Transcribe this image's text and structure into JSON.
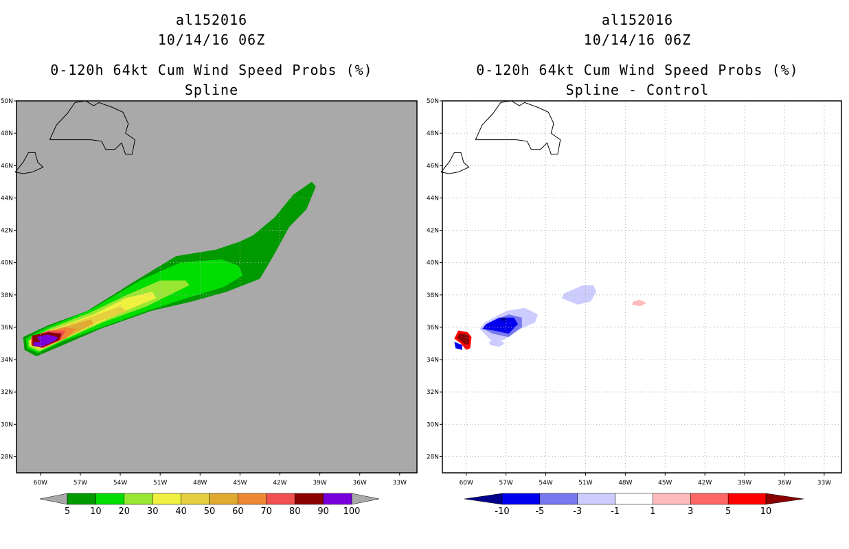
{
  "chart_data": [
    {
      "type": "heatmap",
      "title_lines": [
        "al152016",
        "10/14/16 06Z"
      ],
      "subtitle_lines": [
        "0-120h 64kt Cum Wind Speed Probs (%)",
        "Spline"
      ],
      "lon_ticks": [
        "60W",
        "57W",
        "54W",
        "51W",
        "48W",
        "45W",
        "42W",
        "39W",
        "36W",
        "33W"
      ],
      "lat_ticks": [
        "50N",
        "48N",
        "46N",
        "44N",
        "42N",
        "40N",
        "38N",
        "36N",
        "34N",
        "32N",
        "30N",
        "28N"
      ],
      "xlim": [
        -61.8,
        -31.7
      ],
      "ylim": [
        27.0,
        50.0
      ],
      "background": "#a9a9a9",
      "colorbar": {
        "labels": [
          "5",
          "10",
          "20",
          "30",
          "40",
          "50",
          "60",
          "70",
          "80",
          "90",
          "100"
        ],
        "colors": [
          "#009900",
          "#00dd00",
          "#99e633",
          "#f0f040",
          "#e6d040",
          "#e0aa30",
          "#ee8833",
          "#f05050",
          "#8b0000",
          "#7700dd"
        ]
      },
      "levels": [
        {
          "value": 5,
          "color": "#009900",
          "polygon": [
            [
              -61.2,
              34.6
            ],
            [
              -60.3,
              34.2
            ],
            [
              -58.6,
              34.8
            ],
            [
              -55.5,
              35.9
            ],
            [
              -51.7,
              37.0
            ],
            [
              -48.6,
              37.6
            ],
            [
              -46.0,
              38.2
            ],
            [
              -43.5,
              39.0
            ],
            [
              -42.5,
              40.4
            ],
            [
              -41.3,
              42.2
            ],
            [
              -40.0,
              43.3
            ],
            [
              -39.3,
              44.7
            ],
            [
              -39.6,
              45.0
            ],
            [
              -41.0,
              44.2
            ],
            [
              -42.4,
              42.8
            ],
            [
              -44.0,
              41.7
            ],
            [
              -45.0,
              41.3
            ],
            [
              -46.8,
              40.8
            ],
            [
              -49.8,
              40.4
            ],
            [
              -53.0,
              38.8
            ],
            [
              -56.5,
              37.0
            ],
            [
              -59.5,
              36.1
            ],
            [
              -61.3,
              35.4
            ]
          ]
        },
        {
          "value": 10,
          "color": "#00dd00",
          "polygon": [
            [
              -61.0,
              34.7
            ],
            [
              -60.2,
              34.4
            ],
            [
              -58.4,
              35.1
            ],
            [
              -55.4,
              36.0
            ],
            [
              -52.0,
              37.0
            ],
            [
              -49.0,
              37.8
            ],
            [
              -46.2,
              38.5
            ],
            [
              -44.8,
              39.2
            ],
            [
              -45.1,
              39.8
            ],
            [
              -46.4,
              40.2
            ],
            [
              -49.5,
              40.0
            ],
            [
              -52.5,
              38.9
            ],
            [
              -56.2,
              37.1
            ],
            [
              -59.5,
              36.0
            ],
            [
              -61.1,
              35.3
            ]
          ]
        },
        {
          "value": 20,
          "color": "#99e633",
          "polygon": [
            [
              -60.9,
              34.8
            ],
            [
              -60.1,
              34.5
            ],
            [
              -58.3,
              35.2
            ],
            [
              -55.3,
              36.3
            ],
            [
              -52.0,
              37.3
            ],
            [
              -49.8,
              38.2
            ],
            [
              -48.8,
              38.6
            ],
            [
              -49.1,
              38.9
            ],
            [
              -51.0,
              38.9
            ],
            [
              -53.5,
              38.0
            ],
            [
              -56.3,
              36.9
            ],
            [
              -59.4,
              35.9
            ],
            [
              -60.9,
              35.2
            ]
          ]
        },
        {
          "value": 30,
          "color": "#f0f040",
          "polygon": [
            [
              -60.8,
              34.9
            ],
            [
              -60.0,
              34.6
            ],
            [
              -58.2,
              35.3
            ],
            [
              -55.3,
              36.4
            ],
            [
              -52.5,
              37.4
            ],
            [
              -51.3,
              37.8
            ],
            [
              -51.6,
              38.2
            ],
            [
              -53.6,
              37.8
            ],
            [
              -56.0,
              36.8
            ],
            [
              -59.3,
              35.8
            ],
            [
              -60.8,
              35.2
            ]
          ]
        },
        {
          "value": 40,
          "color": "#e6d040",
          "polygon": [
            [
              -60.7,
              34.95
            ],
            [
              -59.9,
              34.7
            ],
            [
              -58.1,
              35.4
            ],
            [
              -55.5,
              36.4
            ],
            [
              -53.5,
              37.0
            ],
            [
              -54.0,
              37.3
            ],
            [
              -56.0,
              36.7
            ],
            [
              -59.2,
              35.8
            ],
            [
              -60.7,
              35.2
            ]
          ]
        },
        {
          "value": 50,
          "color": "#e0aa30",
          "polygon": [
            [
              -60.6,
              35.0
            ],
            [
              -59.8,
              34.8
            ],
            [
              -58.0,
              35.4
            ],
            [
              -56.0,
              36.2
            ],
            [
              -56.2,
              36.5
            ],
            [
              -58.2,
              36.0
            ],
            [
              -59.6,
              35.7
            ],
            [
              -60.6,
              35.3
            ]
          ]
        },
        {
          "value": 60,
          "color": "#ee8833",
          "polygon": [
            [
              -60.6,
              34.95
            ],
            [
              -59.7,
              34.8
            ],
            [
              -58.1,
              35.3
            ],
            [
              -57.3,
              35.9
            ],
            [
              -58.2,
              36.0
            ],
            [
              -59.5,
              35.7
            ],
            [
              -60.6,
              35.3
            ]
          ]
        },
        {
          "value": 70,
          "color": "#f05050",
          "polygon": [
            [
              -60.7,
              34.9
            ],
            [
              -59.8,
              34.7
            ],
            [
              -58.5,
              35.2
            ],
            [
              -58.1,
              35.8
            ],
            [
              -59.4,
              35.8
            ],
            [
              -60.7,
              35.4
            ]
          ]
        },
        {
          "value": 80,
          "color": "#8b0000",
          "polygon": [
            [
              -60.6,
              34.85
            ],
            [
              -59.9,
              34.75
            ],
            [
              -58.6,
              35.2
            ],
            [
              -58.4,
              35.6
            ],
            [
              -59.4,
              35.7
            ],
            [
              -60.6,
              35.5
            ]
          ]
        },
        {
          "value": 90,
          "color": "#7700dd",
          "polygon": [
            [
              -60.5,
              34.85
            ],
            [
              -59.9,
              34.8
            ],
            [
              -58.8,
              35.2
            ],
            [
              -58.7,
              35.4
            ],
            [
              -59.5,
              35.55
            ],
            [
              -60.3,
              35.4
            ],
            [
              -60.0,
              35.1
            ],
            [
              -60.5,
              35.1
            ]
          ]
        }
      ]
    },
    {
      "type": "heatmap",
      "title_lines": [
        "al152016",
        "10/14/16 06Z"
      ],
      "subtitle_lines": [
        "0-120h 64kt Cum Wind Speed Probs (%)",
        "Spline - Control"
      ],
      "lon_ticks": [
        "60W",
        "57W",
        "54W",
        "51W",
        "48W",
        "45W",
        "42W",
        "39W",
        "36W",
        "33W"
      ],
      "lat_ticks": [
        "50N",
        "48N",
        "46N",
        "44N",
        "42N",
        "40N",
        "38N",
        "36N",
        "34N",
        "32N",
        "30N",
        "28N"
      ],
      "xlim": [
        -61.8,
        -31.7
      ],
      "ylim": [
        27.0,
        50.0
      ],
      "background": "#ffffff",
      "colorbar": {
        "labels": [
          "-10",
          "-5",
          "-3",
          "-1",
          "1",
          "3",
          "5",
          "10"
        ],
        "colors": [
          "#00008b",
          "#0000ee",
          "#7777ee",
          "#ccccff",
          "#ffffff",
          "#ffbbbb",
          "#ff6666",
          "#ff0000",
          "#880000"
        ]
      },
      "levels": [
        {
          "value": -1,
          "color": "#ccccff",
          "polygon": [
            [
              -59.0,
              35.9
            ],
            [
              -58.0,
              35.1
            ],
            [
              -57.2,
              35.2
            ],
            [
              -56.2,
              35.8
            ],
            [
              -54.8,
              36.3
            ],
            [
              -54.6,
              36.8
            ],
            [
              -55.6,
              37.2
            ],
            [
              -57.0,
              37.0
            ],
            [
              -58.6,
              36.3
            ]
          ]
        },
        {
          "value": -1,
          "color": "#ccccff",
          "polygon": [
            [
              -58.2,
              34.9
            ],
            [
              -57.5,
              34.8
            ],
            [
              -57.1,
              35.0
            ],
            [
              -57.6,
              35.3
            ],
            [
              -58.3,
              35.1
            ]
          ]
        },
        {
          "value": -1,
          "color": "#ccccff",
          "polygon": [
            [
              -52.8,
              37.8
            ],
            [
              -51.6,
              37.4
            ],
            [
              -50.6,
              37.6
            ],
            [
              -50.2,
              38.2
            ],
            [
              -50.4,
              38.6
            ],
            [
              -51.2,
              38.6
            ],
            [
              -52.6,
              38.1
            ]
          ]
        },
        {
          "value": -3,
          "color": "#7777ee",
          "polygon": [
            [
              -58.7,
              35.9
            ],
            [
              -58.0,
              35.6
            ],
            [
              -56.8,
              35.4
            ],
            [
              -55.8,
              36.0
            ],
            [
              -55.8,
              36.6
            ],
            [
              -56.8,
              36.8
            ],
            [
              -58.2,
              36.3
            ]
          ]
        },
        {
          "value": -5,
          "color": "#0000ee",
          "polygon": [
            [
              -58.8,
              35.9
            ],
            [
              -57.9,
              35.8
            ],
            [
              -56.8,
              35.6
            ],
            [
              -56.1,
              36.2
            ],
            [
              -56.4,
              36.6
            ],
            [
              -57.5,
              36.6
            ],
            [
              -58.5,
              36.2
            ]
          ]
        },
        {
          "value": -5,
          "color": "#0000ee",
          "polygon": [
            [
              -60.9,
              35.1
            ],
            [
              -60.3,
              34.9
            ],
            [
              -60.3,
              34.6
            ],
            [
              -60.8,
              34.7
            ]
          ]
        },
        {
          "value": -10,
          "color": "#00008b",
          "polygon": [
            [
              -57.4,
              36.4
            ],
            [
              -57.0,
              36.4
            ],
            [
              -57.0,
              36.6
            ],
            [
              -57.4,
              36.6
            ]
          ]
        },
        {
          "value": 3,
          "color": "#ffbbbb",
          "polygon": [
            [
              -47.5,
              37.4
            ],
            [
              -46.9,
              37.3
            ],
            [
              -46.4,
              37.5
            ],
            [
              -46.9,
              37.7
            ],
            [
              -47.4,
              37.6
            ]
          ]
        },
        {
          "value": 10,
          "color": "#ff0000",
          "polygon": [
            [
              -60.9,
              35.3
            ],
            [
              -60.4,
              35.0
            ],
            [
              -60.0,
              34.6
            ],
            [
              -59.7,
              34.7
            ],
            [
              -59.6,
              35.4
            ],
            [
              -59.9,
              35.7
            ],
            [
              -60.6,
              35.8
            ]
          ]
        },
        {
          "value": 10,
          "color": "#880000",
          "polygon": [
            [
              -60.7,
              35.35
            ],
            [
              -60.3,
              35.1
            ],
            [
              -60.0,
              34.9
            ],
            [
              -59.8,
              35.0
            ],
            [
              -59.8,
              35.5
            ],
            [
              -60.1,
              35.6
            ],
            [
              -60.5,
              35.6
            ]
          ]
        }
      ]
    }
  ]
}
